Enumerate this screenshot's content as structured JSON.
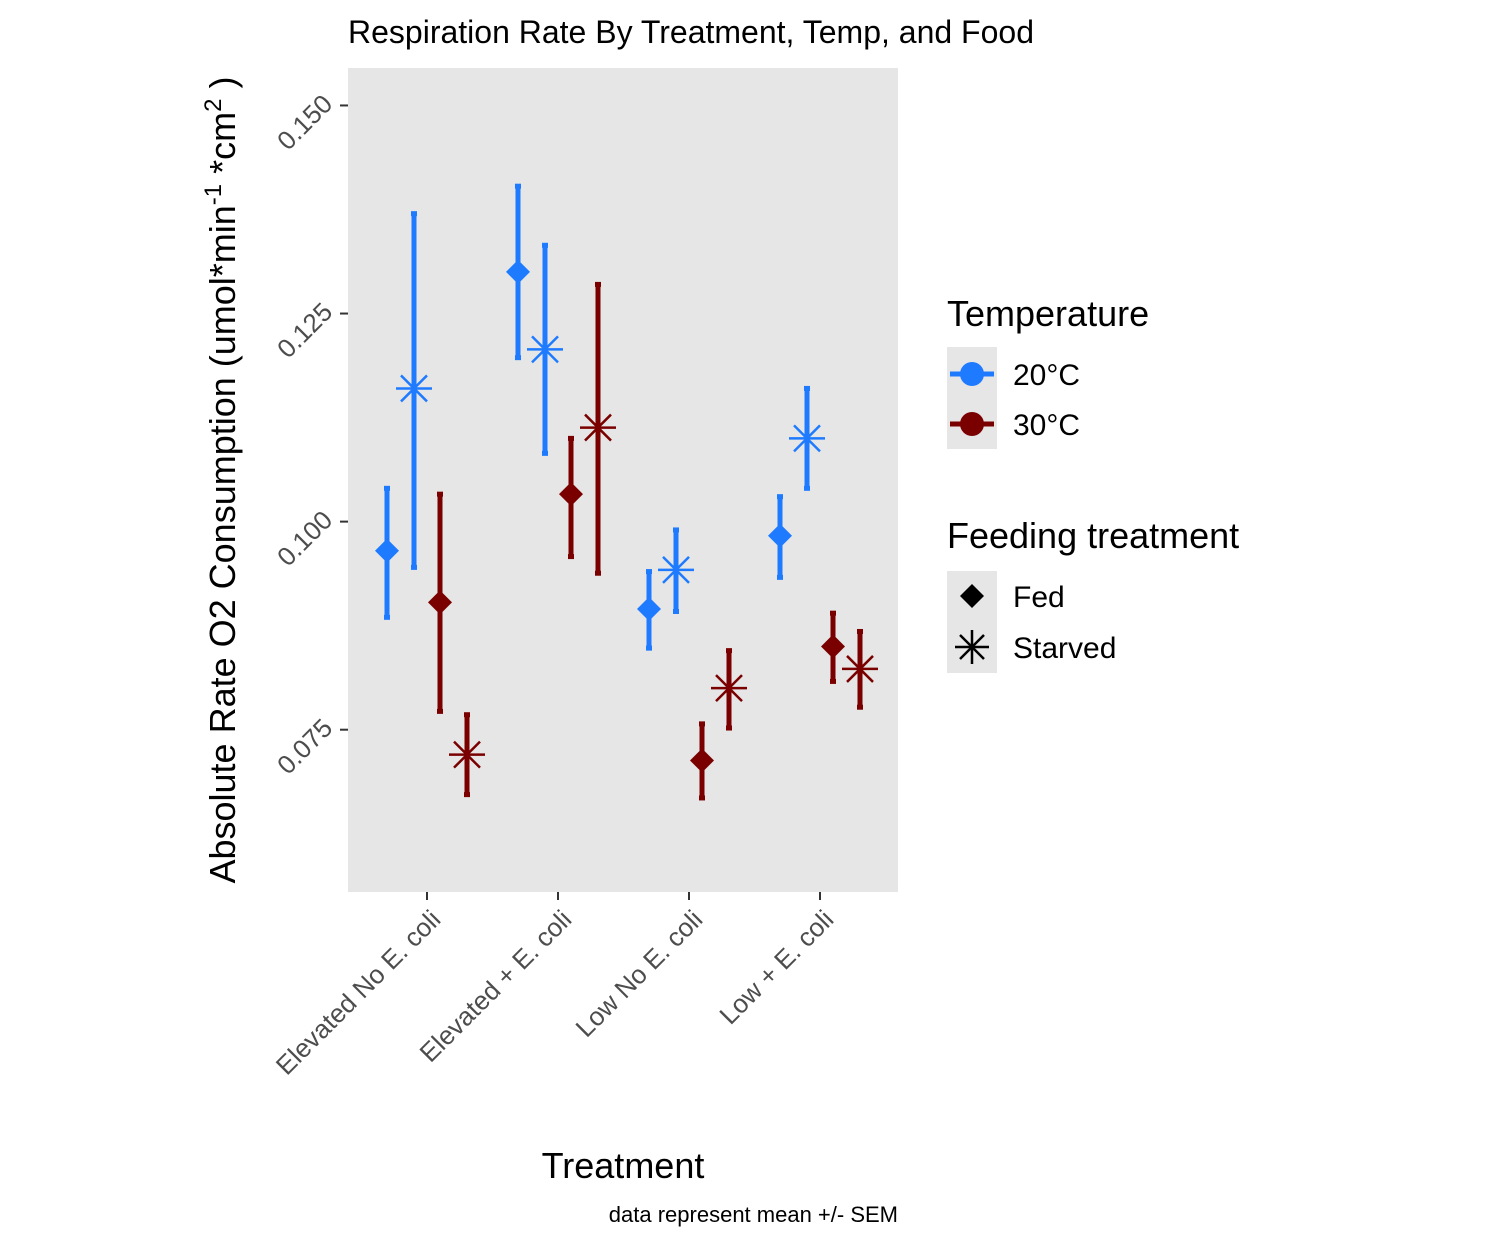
{
  "chart_data": {
    "type": "scatter",
    "title": "Respiration Rate By Treatment, Temp, and Food",
    "xlabel": "Treatment",
    "ylabel_main": "Absolute Rate O2 Consumption (umol*min",
    "ylabel_sup1": "-1",
    "ylabel_mid": " *cm",
    "ylabel_sup2": "2",
    "ylabel_end": " )",
    "caption": "data represent mean +/- SEM",
    "categories": [
      "Elevated No E. coli",
      "Elevated + E. coli",
      "Low No E. coli",
      "Low + E. coli"
    ],
    "ylim": [
      0.0555,
      0.1545
    ],
    "yticks": [
      0.075,
      0.1,
      0.125,
      0.15
    ],
    "ytick_labels": [
      "0.075",
      "0.100",
      "0.125",
      "0.150"
    ],
    "grid": false,
    "legend_placement": "right",
    "legends": [
      {
        "title": "Temperature",
        "entries": [
          {
            "label": "20°C",
            "color": "#1E7BFF"
          },
          {
            "label": "30°C",
            "color": "#7A0000"
          }
        ]
      },
      {
        "title": "Feeding treatment",
        "entries": [
          {
            "label": "Fed",
            "shape": "diamond"
          },
          {
            "label": "Starved",
            "shape": "asterisk"
          }
        ]
      }
    ],
    "colors": {
      "20°C": "#1E7BFF",
      "30°C": "#7A0000"
    },
    "series": [
      {
        "temperature": "20°C",
        "feeding": "Fed",
        "values": [
          0.0965,
          0.13,
          0.0895,
          0.0983
        ],
        "lower": [
          0.0885,
          0.1197,
          0.0848,
          0.0933
        ],
        "upper": [
          0.104,
          0.1403,
          0.094,
          0.103
        ]
      },
      {
        "temperature": "20°C",
        "feeding": "Starved",
        "values": [
          0.116,
          0.1207,
          0.0942,
          0.11
        ],
        "lower": [
          0.0945,
          0.1082,
          0.0892,
          0.104
        ],
        "upper": [
          0.137,
          0.1332,
          0.099,
          0.116
        ]
      },
      {
        "temperature": "30°C",
        "feeding": "Fed",
        "values": [
          0.0903,
          0.1033,
          0.0713,
          0.085
        ],
        "lower": [
          0.0772,
          0.0958,
          0.0668,
          0.0808
        ],
        "upper": [
          0.1033,
          0.11,
          0.0757,
          0.089
        ]
      },
      {
        "temperature": "30°C",
        "feeding": "Starved",
        "values": [
          0.072,
          0.1113,
          0.08,
          0.0823
        ],
        "lower": [
          0.0672,
          0.0938,
          0.0752,
          0.0777
        ],
        "upper": [
          0.0768,
          0.1285,
          0.0845,
          0.0868
        ]
      }
    ]
  }
}
